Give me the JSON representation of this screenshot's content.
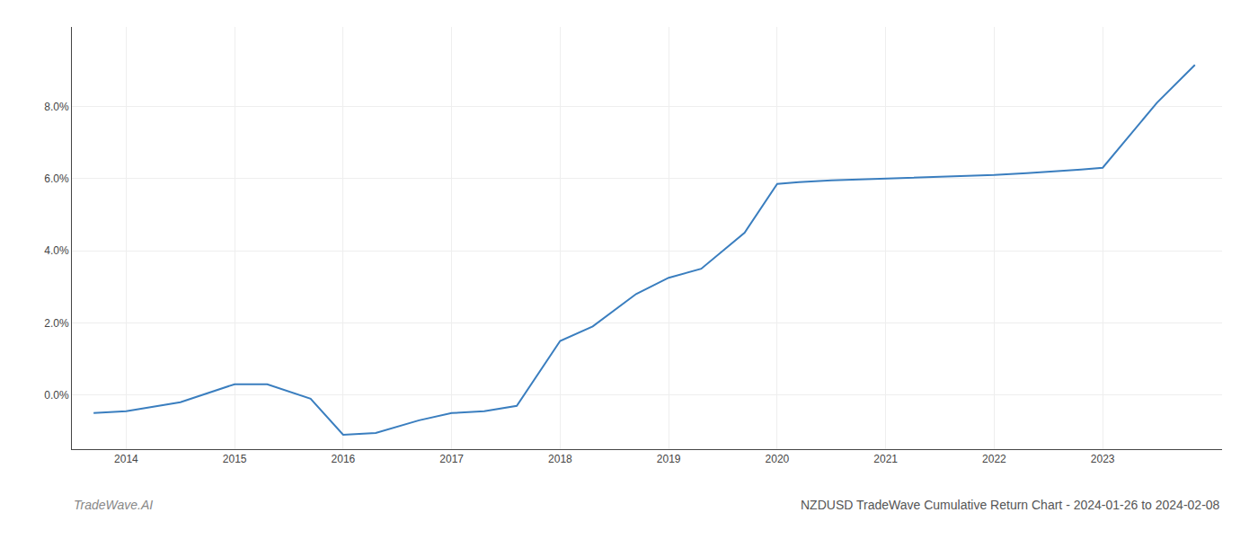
{
  "chart_data": {
    "type": "line",
    "title": "NZDUSD TradeWave Cumulative Return Chart - 2024-01-26 to 2024-02-08",
    "annotations": [
      {
        "text": "TradeWave.AI"
      }
    ],
    "x": [
      2013.7,
      2014.0,
      2014.5,
      2015.0,
      2015.3,
      2015.7,
      2016.0,
      2016.3,
      2016.7,
      2017.0,
      2017.3,
      2017.6,
      2018.0,
      2018.3,
      2018.7,
      2019.0,
      2019.3,
      2019.7,
      2020.0,
      2020.2,
      2020.5,
      2021.0,
      2021.5,
      2022.0,
      2022.3,
      2022.6,
      2022.8,
      2023.0,
      2023.5,
      2023.85
    ],
    "values": [
      -0.5,
      -0.45,
      -0.2,
      0.3,
      0.3,
      -0.1,
      -1.1,
      -1.05,
      -0.7,
      -0.5,
      -0.45,
      -0.3,
      1.5,
      1.9,
      2.8,
      3.25,
      3.5,
      4.5,
      5.85,
      5.9,
      5.95,
      6.0,
      6.05,
      6.1,
      6.15,
      6.2,
      6.25,
      6.3,
      8.1,
      9.15
    ],
    "color": "#3a7ebf",
    "xlim": [
      2013.5,
      2024.1
    ],
    "ylim": [
      -1.5,
      10.2
    ],
    "xticks": [
      2014,
      2015,
      2016,
      2017,
      2018,
      2019,
      2020,
      2021,
      2022,
      2023
    ],
    "yticks": [
      {
        "value": 0.0,
        "label": "0.0%"
      },
      {
        "value": 2.0,
        "label": "2.0%"
      },
      {
        "value": 4.0,
        "label": "4.0%"
      },
      {
        "value": 6.0,
        "label": "6.0%"
      },
      {
        "value": 8.0,
        "label": "8.0%"
      }
    ],
    "grid": true
  }
}
